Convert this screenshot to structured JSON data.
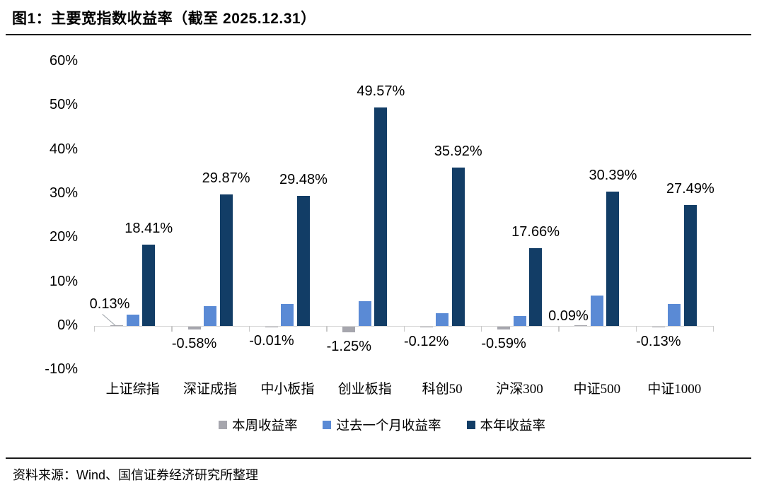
{
  "header": {
    "title": "图1：主要宽指数收益率（截至 2025.12.31）"
  },
  "footer": {
    "source": "资料来源：Wind、国信证券经济研究所整理"
  },
  "chart_data": {
    "type": "bar",
    "title": "主要宽指数收益率（截至 2025.12.31）",
    "categories": [
      "上证综指",
      "深证成指",
      "中小板指",
      "创业板指",
      "科创50",
      "沪深300",
      "中证500",
      "中证1000"
    ],
    "series": [
      {
        "name": "本周收益率",
        "color": "#a6a6ad",
        "values": [
          0.13,
          -0.58,
          -0.01,
          -1.25,
          -0.12,
          -0.59,
          0.09,
          -0.13
        ],
        "data_labels": [
          "0.13%",
          "-0.58%",
          "-0.01%",
          "-1.25%",
          "-0.12%",
          "-0.59%",
          "0.09%",
          "-0.13%"
        ],
        "label_pos": [
          "callout",
          "below",
          "below",
          "below",
          "below",
          "below",
          "above",
          "below"
        ]
      },
      {
        "name": "过去一个月收益率",
        "color": "#5a8ad5",
        "values": [
          2.5,
          4.5,
          5.0,
          5.6,
          2.9,
          2.3,
          6.9,
          5.0
        ],
        "data_labels": null,
        "label_pos": null
      },
      {
        "name": "本年收益率",
        "color": "#123d66",
        "values": [
          18.41,
          29.87,
          29.48,
          49.57,
          35.92,
          17.66,
          30.39,
          27.49
        ],
        "data_labels": [
          "18.41%",
          "29.87%",
          "29.48%",
          "49.57%",
          "35.92%",
          "17.66%",
          "30.39%",
          "27.49%"
        ],
        "label_pos": "above"
      }
    ],
    "y_axis": {
      "unit": "%",
      "tick_labels": [
        "60%",
        "50%",
        "40%",
        "30%",
        "20%",
        "10%",
        "0%",
        "-10%"
      ],
      "tick_values": [
        60,
        50,
        40,
        30,
        20,
        10,
        0,
        -10
      ],
      "min": -10,
      "max": 60
    },
    "legend_position": "bottom-center",
    "grid": false
  }
}
